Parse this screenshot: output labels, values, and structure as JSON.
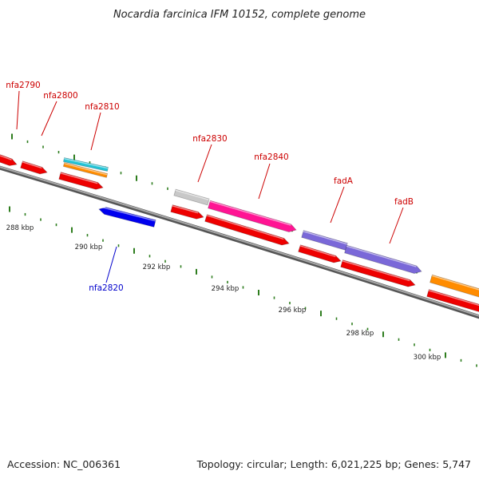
{
  "header": {
    "title": "Nocardia farcinica IFM 10152, complete genome"
  },
  "footer": {
    "accession": "Accession: NC_006361",
    "summary": "Topology: circular; Length: 6,021,225 bp; Genes: 5,747"
  },
  "colors": {
    "backbone": "#808080",
    "tick": "#2e7d1e",
    "label_red": "#cc0000",
    "label_blue": "#0000cc",
    "red": "#ee0000",
    "blue": "#0000ee",
    "cyan": "#22c4d6",
    "orange": "#ff8c00",
    "magenta": "#ff1493",
    "gray": "#c8c8c8",
    "purple": "#7a68d8"
  },
  "kbp_labels": [
    "288 kbp",
    "290 kbp",
    "292 kbp",
    "294 kbp",
    "296 kbp",
    "298 kbp",
    "300 kbp"
  ],
  "gene_labels": [
    "nfa2790",
    "nfa2800",
    "nfa2810",
    "nfa2830",
    "nfa2840",
    "fadA",
    "fadB",
    "nfa2820"
  ]
}
